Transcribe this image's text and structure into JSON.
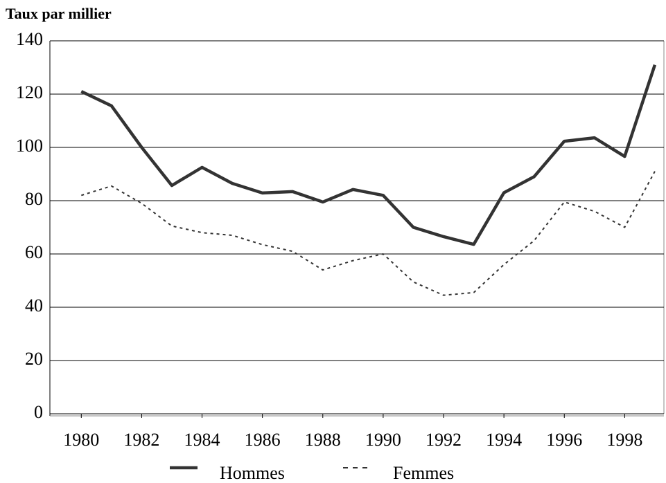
{
  "chart_data": {
    "type": "line",
    "title": "Taux par millier",
    "x": [
      1980,
      1981,
      1982,
      1983,
      1984,
      1985,
      1986,
      1987,
      1988,
      1989,
      1990,
      1991,
      1992,
      1993,
      1994,
      1995,
      1996,
      1997,
      1998,
      1999
    ],
    "series": [
      {
        "name": "Hommes",
        "color": "#333333",
        "dash": false,
        "values": [
          121,
          115.6,
          100,
          85.7,
          92.5,
          86.5,
          82.9,
          83.4,
          79.5,
          84.2,
          82,
          70,
          66.5,
          63.6,
          83,
          89,
          102.3,
          103.6,
          96.6,
          131
        ]
      },
      {
        "name": "Femmes",
        "color": "#333333",
        "dash": true,
        "values": [
          82,
          85.5,
          79,
          70.5,
          68,
          67,
          63.5,
          61,
          54,
          57.5,
          60,
          49.5,
          44.5,
          45.5,
          56,
          65,
          79.5,
          76,
          70,
          91
        ]
      }
    ],
    "xlim": [
      1978.96,
      1999.3
    ],
    "xticks": [
      1980,
      1982,
      1984,
      1986,
      1988,
      1990,
      1992,
      1994,
      1996,
      1998
    ],
    "ylim": [
      0,
      140
    ],
    "yticks": [
      0,
      20,
      40,
      60,
      80,
      100,
      120,
      140
    ],
    "grid": true,
    "legend": "bottom"
  }
}
